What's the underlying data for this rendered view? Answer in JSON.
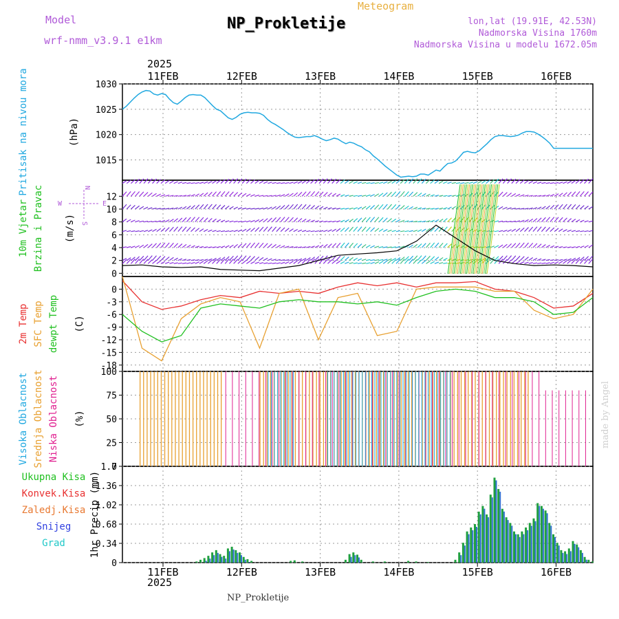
{
  "header": {
    "model_label": "Model",
    "model_name": "wrf-nmm_v3.9.1 e1km",
    "title": "NP_Prokletije",
    "subtitle": "Meteogram",
    "lonlat": "lon,lat (19.91E, 42.53N)",
    "elevation": "Nadmorska Visina 1760m",
    "model_elevation": "Nadmorska Visina u modelu 1672.05m",
    "year_top": "2025",
    "year_bottom": "2025",
    "bottom_title": "NP_Prokletije",
    "credit": "made by Angel",
    "colors": {
      "title": "#000000",
      "subtitle": "#e8b040",
      "meta": "#b05ad8",
      "credit": "#d0d0d0"
    }
  },
  "chart_data": [
    {
      "type": "line",
      "panel": "pressure",
      "ylabel": [
        "Pritisak na nivou mora",
        "(hPa)"
      ],
      "ylabel_colors": [
        "#20a8e0",
        "#000000"
      ],
      "ylim": [
        1011,
        1030
      ],
      "yticks": [
        1015,
        1020,
        1025,
        1030
      ],
      "x_ticks": [
        "11FEB",
        "12FEB",
        "13FEB",
        "14FEB",
        "15FEB",
        "16FEB"
      ],
      "series": [
        {
          "color": "#20a8e0",
          "x": [
            0,
            0.1,
            0.2,
            0.3,
            0.4,
            0.5,
            0.6,
            0.7,
            0.8,
            0.9,
            1.0,
            1.1,
            1.2,
            1.3,
            1.4,
            1.5,
            1.6,
            1.7,
            1.8,
            1.9,
            2.0,
            2.1,
            2.2,
            2.3,
            2.4,
            2.5,
            2.6,
            2.7,
            2.8,
            2.9,
            3.0,
            3.1,
            3.2,
            3.3,
            3.4,
            3.5,
            3.6,
            3.7,
            3.8,
            3.9,
            4.0,
            4.1,
            4.2,
            4.3,
            4.4,
            4.5,
            4.6,
            4.7,
            4.8,
            4.9,
            5.0,
            5.1,
            5.2,
            5.3,
            5.4,
            5.5,
            5.6,
            5.7,
            5.8,
            5.9,
            6.0,
            6.1,
            6.2,
            6.3,
            6.4,
            6.5,
            6.6,
            6.7,
            6.8,
            6.9,
            7.0,
            7.1,
            7.2,
            7.3,
            7.4,
            7.5,
            7.6,
            7.7,
            7.8,
            7.9,
            8.0,
            8.1,
            8.2,
            8.3,
            8.4,
            8.5,
            8.6,
            8.7,
            8.8,
            8.9,
            9.0,
            9.1,
            9.2,
            9.3,
            9.4,
            9.5,
            9.6,
            9.7,
            9.8,
            9.9,
            10.0,
            10.1,
            10.2,
            10.3,
            10.4,
            10.5,
            10.6,
            10.7,
            10.8,
            10.9,
            11.0,
            11.1,
            11.2,
            11.3,
            11.4,
            11.5,
            11.6,
            11.7,
            11.8,
            11.9,
            12.0
          ],
          "y": [
            1025.0,
            1025.6,
            1026.4,
            1027.2,
            1027.9,
            1028.4,
            1028.7,
            1028.6,
            1028.0,
            1027.8,
            1028.1,
            1027.9,
            1027.0,
            1026.3,
            1026.0,
            1026.6,
            1027.3,
            1027.8,
            1027.9,
            1027.8,
            1027.8,
            1027.3,
            1026.5,
            1025.7,
            1025.0,
            1024.7,
            1024.0,
            1023.3,
            1023.0,
            1023.4,
            1024.0,
            1024.3,
            1024.4,
            1024.3,
            1024.3,
            1024.2,
            1023.8,
            1023.0,
            1022.4,
            1022.0,
            1021.5,
            1021.0,
            1020.4,
            1019.9,
            1019.5,
            1019.4,
            1019.5,
            1019.6,
            1019.6,
            1019.8,
            1019.5,
            1019.1,
            1018.8,
            1019.0,
            1019.3,
            1019.1,
            1018.6,
            1018.2,
            1018.5,
            1018.3,
            1017.9,
            1017.6,
            1017.0,
            1016.6,
            1015.8,
            1015.2,
            1014.5,
            1013.8,
            1013.2,
            1012.6,
            1012.0,
            1011.6,
            1011.7,
            1011.8,
            1011.7,
            1011.8,
            1012.2,
            1012.2,
            1012.0,
            1012.5,
            1013.0,
            1012.8,
            1013.6,
            1014.3,
            1014.4,
            1014.8,
            1015.6,
            1016.5,
            1016.7,
            1016.5,
            1016.4,
            1016.8,
            1017.5,
            1018.2,
            1019.0,
            1019.6,
            1019.8,
            1019.8,
            1019.7,
            1019.6,
            1019.7,
            1019.9,
            1020.3,
            1020.6,
            1020.6,
            1020.5,
            1020.1,
            1019.6,
            1019.0,
            1018.3,
            1017.3,
            1017.3,
            1017.3,
            1017.3,
            1017.3,
            1017.3,
            1017.3,
            1017.3,
            1017.3,
            1017.3,
            1017.3
          ]
        }
      ]
    },
    {
      "type": "line",
      "panel": "wind",
      "ylabel": [
        "10m Vjetar",
        "Brzina i Pravac",
        "(m/s)"
      ],
      "ylabel_colors": [
        "#20c020",
        "#20c020",
        "#000000"
      ],
      "compass": {
        "n": "N",
        "s": "S",
        "w": "W",
        "e": "E",
        "color": "#b05ad8"
      },
      "ylim": [
        -0.5,
        14.5
      ],
      "yticks": [
        0,
        2,
        4,
        6,
        8,
        10,
        12
      ],
      "barb_rows": [
        14,
        12,
        10,
        8,
        6.5,
        4,
        2,
        1.5
      ],
      "series": [
        {
          "name": "",
          "color": "#000000",
          "x": [
            0,
            0.5,
            1.0,
            1.5,
            2.0,
            2.5,
            3.0,
            3.5,
            4.0,
            4.5,
            5.0,
            5.5,
            6.0,
            6.5,
            7.0,
            7.5,
            8.0,
            8.5,
            9.0,
            9.5,
            10.0,
            10.5,
            11.0,
            11.5,
            12.0
          ],
          "y": [
            1.2,
            1.3,
            1.0,
            0.9,
            1.0,
            0.6,
            0.5,
            0.4,
            0.8,
            1.2,
            2.0,
            2.8,
            3.0,
            3.2,
            3.5,
            5.0,
            7.5,
            5.5,
            3.5,
            2.0,
            1.5,
            1.2,
            1.3,
            1.2,
            1.0
          ]
        }
      ]
    },
    {
      "type": "line",
      "panel": "temperature",
      "ylabel": [
        "2m Temp",
        "SFC Temp",
        "dewpt Temp",
        "(C)"
      ],
      "ylabel_colors": [
        "#e83030",
        "#e8a030",
        "#20c020",
        "#000000"
      ],
      "ylim": [
        -19.5,
        3
      ],
      "yticks": [
        0,
        -3,
        -6,
        -9,
        -12,
        -15,
        -18
      ],
      "x": [
        0,
        0.5,
        1.0,
        1.5,
        2.0,
        2.5,
        3.0,
        3.5,
        4.0,
        4.5,
        5.0,
        5.5,
        6.0,
        6.5,
        7.0,
        7.5,
        8.0,
        8.5,
        9.0,
        9.5,
        10.0,
        10.5,
        11.0,
        11.5,
        12.0
      ],
      "series": [
        {
          "name": "2m Temp",
          "color": "#e83030",
          "y": [
            2,
            -3,
            -4.8,
            -4,
            -2.5,
            -1.5,
            -2,
            -0.5,
            -1,
            -0.5,
            -1,
            0.5,
            1.5,
            0.8,
            1.5,
            0.5,
            1.5,
            1.5,
            1.8,
            0,
            -0.5,
            -2,
            -4.5,
            -4,
            -1
          ]
        },
        {
          "name": "SFC Temp",
          "color": "#e8a030",
          "y": [
            3,
            -14,
            -17,
            -7,
            -3.5,
            -2,
            -3,
            -14,
            -1,
            0,
            -12,
            -2,
            -1,
            -11,
            -10,
            0,
            0.5,
            0.5,
            0.5,
            -0.5,
            -0.5,
            -5,
            -7,
            -6,
            0
          ]
        },
        {
          "name": "dewpt Temp",
          "color": "#20c020",
          "y": [
            -6,
            -10,
            -12.5,
            -11,
            -4.5,
            -3.5,
            -4,
            -4.5,
            -3,
            -2.5,
            -3,
            -3,
            -3.5,
            -3,
            -3.8,
            -2,
            -0.5,
            0,
            -0.5,
            -2,
            -2,
            -3,
            -6,
            -5.5,
            -2
          ]
        }
      ]
    },
    {
      "type": "bar",
      "panel": "cloud",
      "ylabel": [
        "Visoka Oblacnost",
        "Srednja Oblacnost",
        "Niska Oblacnost",
        "(%)"
      ],
      "ylabel_colors": [
        "#20a8e0",
        "#e8a030",
        "#e02090",
        "#000000"
      ],
      "ylim": [
        0,
        100
      ],
      "yticks": [
        0,
        25,
        50,
        75,
        100
      ],
      "series": [
        {
          "name": "Visoka Oblacnost",
          "color": "#20a8e0",
          "x_range": [
            3.7,
            4.4,
            5.2,
            8.4
          ],
          "y": 100
        },
        {
          "name": "Srednja Oblacnost",
          "color": "#e8a030",
          "x_range": [
            0.6,
            2.4,
            3.5,
            10.4
          ],
          "y": 100
        },
        {
          "name": "Niska Oblacnost",
          "color": "#e02090",
          "x_range": [
            1.6,
            11.9
          ],
          "y": 100
        }
      ]
    },
    {
      "type": "bar",
      "panel": "precip",
      "ylabel": [
        "1hr Precip (mm)"
      ],
      "ylabel_colors": [
        "#000000"
      ],
      "legend": [
        {
          "name": "Ukupna Kisa",
          "color": "#20c020"
        },
        {
          "name": "Konvek.Kisa",
          "color": "#e83030"
        },
        {
          "name": "Zaledj.Kisa",
          "color": "#e87830"
        },
        {
          "name": "Snijeg",
          "color": "#3040e0"
        },
        {
          "name": "Grad",
          "color": "#20c8c8"
        }
      ],
      "ylim": [
        0,
        1.7
      ],
      "yticks": [
        0,
        0.34,
        0.68,
        1.02,
        1.36,
        1.7
      ],
      "ytick_labels": [
        "0",
        "0.34",
        "0.68",
        "1.02",
        "1.36",
        "1.7"
      ],
      "x_ticks": [
        "11FEB",
        "12FEB",
        "13FEB",
        "14FEB",
        "15FEB",
        "16FEB"
      ],
      "bars": [
        [
          1.9,
          0.02
        ],
        [
          2.0,
          0.05
        ],
        [
          2.1,
          0.08
        ],
        [
          2.2,
          0.12
        ],
        [
          2.3,
          0.18
        ],
        [
          2.4,
          0.22
        ],
        [
          2.5,
          0.15
        ],
        [
          2.6,
          0.12
        ],
        [
          2.7,
          0.25
        ],
        [
          2.8,
          0.28
        ],
        [
          2.9,
          0.22
        ],
        [
          3.0,
          0.18
        ],
        [
          3.1,
          0.1
        ],
        [
          3.2,
          0.06
        ],
        [
          3.3,
          0.03
        ],
        [
          4.3,
          0.03
        ],
        [
          4.4,
          0.04
        ],
        [
          4.6,
          0.02
        ],
        [
          5.7,
          0.05
        ],
        [
          5.8,
          0.15
        ],
        [
          5.9,
          0.18
        ],
        [
          6.0,
          0.14
        ],
        [
          6.1,
          0.05
        ],
        [
          6.4,
          0.02
        ],
        [
          6.7,
          0.02
        ],
        [
          7.3,
          0.03
        ],
        [
          7.5,
          0.02
        ],
        [
          7.8,
          0.01
        ],
        [
          8.5,
          0.05
        ],
        [
          8.6,
          0.18
        ],
        [
          8.7,
          0.35
        ],
        [
          8.8,
          0.55
        ],
        [
          8.9,
          0.62
        ],
        [
          9.0,
          0.68
        ],
        [
          9.1,
          0.9
        ],
        [
          9.2,
          1.0
        ],
        [
          9.3,
          0.85
        ],
        [
          9.4,
          1.2
        ],
        [
          9.5,
          1.5
        ],
        [
          9.6,
          1.3
        ],
        [
          9.7,
          0.95
        ],
        [
          9.8,
          0.8
        ],
        [
          9.9,
          0.7
        ],
        [
          10.0,
          0.55
        ],
        [
          10.1,
          0.5
        ],
        [
          10.2,
          0.55
        ],
        [
          10.3,
          0.62
        ],
        [
          10.4,
          0.7
        ],
        [
          10.5,
          0.78
        ],
        [
          10.6,
          1.05
        ],
        [
          10.7,
          1.0
        ],
        [
          10.8,
          0.92
        ],
        [
          10.9,
          0.7
        ],
        [
          11.0,
          0.5
        ],
        [
          11.1,
          0.35
        ],
        [
          11.2,
          0.22
        ],
        [
          11.3,
          0.2
        ],
        [
          11.4,
          0.25
        ],
        [
          11.5,
          0.38
        ],
        [
          11.6,
          0.32
        ],
        [
          11.7,
          0.22
        ],
        [
          11.8,
          0.1
        ],
        [
          11.9,
          0.05
        ],
        [
          12.0,
          0.02
        ]
      ]
    }
  ]
}
